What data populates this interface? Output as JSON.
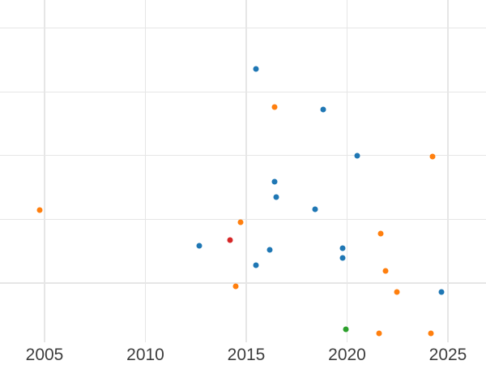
{
  "chart_data": {
    "type": "scatter",
    "title": "",
    "xlabel": "",
    "ylabel": "",
    "x_tick_labels": [
      "2005",
      "2010",
      "2015",
      "2020",
      "2025"
    ],
    "x_ticks": [
      2005,
      2010,
      2015,
      2020,
      2025
    ],
    "xlim": [
      2002.79,
      2026.89
    ],
    "ylim": [
      0.07,
      5.44
    ],
    "y_axis_labels_visible": false,
    "y_unit": "unlabeled (gridline units, gridlines at 1..5)",
    "y_gridline_values": [
      1,
      2,
      3,
      4,
      5
    ],
    "grid": true,
    "legend": "none",
    "background_color": "#ffffff",
    "gridline_color": "#e6e6e6",
    "tick_label_color": "#3d3d3d",
    "marker_diameter_px": 7,
    "series": [
      {
        "name": "blue",
        "color": "#1f77b4",
        "points": [
          [
            2015.5,
            4.359
          ],
          [
            2018.82,
            3.723
          ],
          [
            2020.5,
            2.997
          ],
          [
            2016.41,
            2.59
          ],
          [
            2016.49,
            2.349
          ],
          [
            2018.41,
            2.158
          ],
          [
            2012.67,
            1.585
          ],
          [
            2016.16,
            1.522
          ],
          [
            2015.48,
            1.28
          ],
          [
            2019.78,
            1.547
          ],
          [
            2019.78,
            1.394
          ],
          [
            2024.68,
            0.86
          ]
        ]
      },
      {
        "name": "orange",
        "color": "#ff7f0e",
        "points": [
          [
            2016.41,
            3.761
          ],
          [
            2024.24,
            2.991
          ],
          [
            2004.76,
            2.139
          ],
          [
            2014.72,
            1.954
          ],
          [
            2014.48,
            0.949
          ],
          [
            2021.67,
            1.776
          ],
          [
            2021.91,
            1.191
          ],
          [
            2022.47,
            0.86
          ],
          [
            2021.59,
            0.211
          ],
          [
            2024.16,
            0.211
          ]
        ]
      },
      {
        "name": "red",
        "color": "#d62728",
        "points": [
          [
            2014.18,
            1.674
          ]
        ]
      },
      {
        "name": "green",
        "color": "#2ca02c",
        "points": [
          [
            2019.92,
            0.275
          ]
        ]
      }
    ]
  }
}
